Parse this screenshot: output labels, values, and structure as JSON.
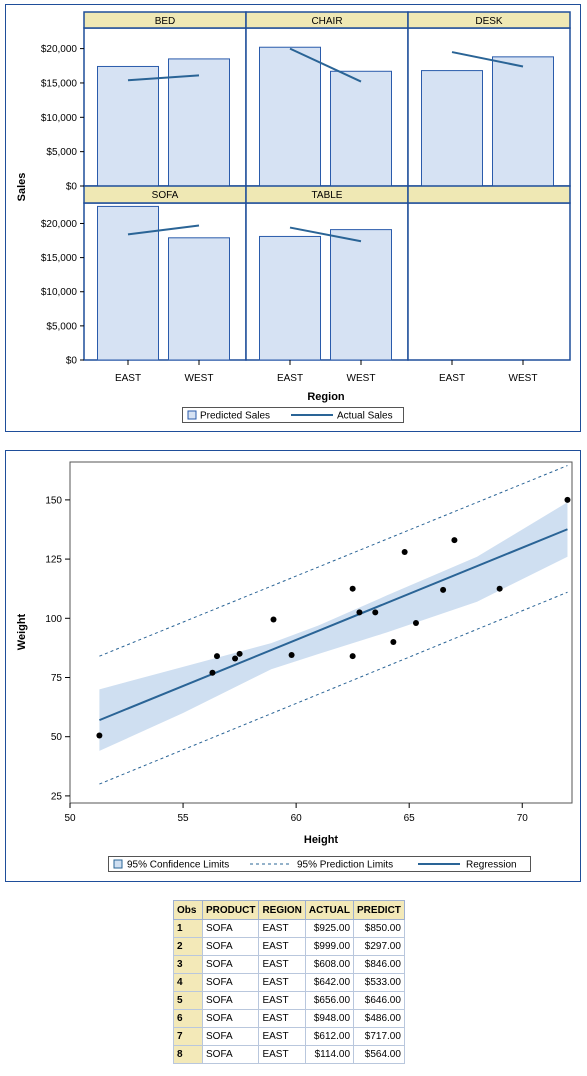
{
  "colors": {
    "bar_fill": "#d6e2f3",
    "bar_stroke": "#2a5bab",
    "line": "#2a6496",
    "header_fill": "#efe8b4",
    "frame": "#1f4e9a",
    "band": "#cfdff1",
    "point": "#000000"
  },
  "chart_data": [
    {
      "type": "bar",
      "panels": [
        {
          "label": "BED",
          "predicted": {
            "EAST": 17400,
            "WEST": 18500
          },
          "actual": {
            "EAST": 15400,
            "WEST": 16100
          }
        },
        {
          "label": "CHAIR",
          "predicted": {
            "EAST": 20200,
            "WEST": 16700
          },
          "actual": {
            "EAST": 20000,
            "WEST": 15200
          }
        },
        {
          "label": "DESK",
          "predicted": {
            "EAST": 16800,
            "WEST": 18800
          },
          "actual": {
            "EAST": 19500,
            "WEST": 17400
          }
        },
        {
          "label": "SOFA",
          "predicted": {
            "EAST": 22500,
            "WEST": 17900
          },
          "actual": {
            "EAST": 18400,
            "WEST": 19700
          }
        },
        {
          "label": "TABLE",
          "predicted": {
            "EAST": 18100,
            "WEST": 19100
          },
          "actual": {
            "EAST": 19400,
            "WEST": 17400
          }
        }
      ],
      "categories": [
        "EAST",
        "WEST"
      ],
      "ylabel": "Sales",
      "xlabel": "Region",
      "ylim": [
        0,
        23000
      ],
      "yticks": [
        "$0",
        "$5,000",
        "$10,000",
        "$15,000",
        "$20,000"
      ],
      "legend": [
        "Predicted Sales",
        "Actual Sales"
      ],
      "legend_position": "bottom"
    },
    {
      "type": "scatter",
      "xlabel": "Height",
      "ylabel": "Weight",
      "xlim": [
        50,
        72.2
      ],
      "ylim": [
        22,
        166
      ],
      "xticks": [
        50,
        55,
        60,
        65,
        70
      ],
      "yticks": [
        25,
        50,
        75,
        100,
        125,
        150
      ],
      "points": [
        [
          51.3,
          50.5
        ],
        [
          56.3,
          77.0
        ],
        [
          56.5,
          84.0
        ],
        [
          57.3,
          83.0
        ],
        [
          57.5,
          85.0
        ],
        [
          59.0,
          99.5
        ],
        [
          59.8,
          84.5
        ],
        [
          62.5,
          112.5
        ],
        [
          62.5,
          84.0
        ],
        [
          62.8,
          102.5
        ],
        [
          63.5,
          102.5
        ],
        [
          64.3,
          90.0
        ],
        [
          64.8,
          128.0
        ],
        [
          65.3,
          98.0
        ],
        [
          66.5,
          112.0
        ],
        [
          67.0,
          133.0
        ],
        [
          69.0,
          112.5
        ],
        [
          72.0,
          150.0
        ]
      ],
      "regression": [
        [
          51.3,
          57.0
        ],
        [
          72.0,
          137.6
        ]
      ],
      "confidence_upper": [
        [
          51.3,
          70.0
        ],
        [
          55,
          79.5
        ],
        [
          58.9,
          89.5
        ],
        [
          61.0,
          97.0
        ],
        [
          64,
          109.6
        ],
        [
          68,
          126.0
        ],
        [
          72.0,
          149.0
        ]
      ],
      "confidence_lower": [
        [
          51.3,
          44.0
        ],
        [
          55,
          60.0
        ],
        [
          58.9,
          78.5
        ],
        [
          61.0,
          85.0
        ],
        [
          64,
          94.0
        ],
        [
          68,
          107.0
        ],
        [
          72.0,
          126.0
        ]
      ],
      "prediction_upper": [
        [
          51.3,
          84.0
        ],
        [
          72.0,
          164.5
        ]
      ],
      "prediction_lower": [
        [
          51.3,
          30.0
        ],
        [
          72.0,
          111.0
        ]
      ],
      "legend": [
        "95% Confidence Limits",
        "95% Prediction Limits",
        "Regression"
      ],
      "legend_position": "bottom"
    },
    {
      "type": "table",
      "columns": [
        "Obs",
        "PRODUCT",
        "REGION",
        "ACTUAL",
        "PREDICT"
      ],
      "rows": [
        [
          "1",
          "SOFA",
          "EAST",
          "$925.00",
          "$850.00"
        ],
        [
          "2",
          "SOFA",
          "EAST",
          "$999.00",
          "$297.00"
        ],
        [
          "3",
          "SOFA",
          "EAST",
          "$608.00",
          "$846.00"
        ],
        [
          "4",
          "SOFA",
          "EAST",
          "$642.00",
          "$533.00"
        ],
        [
          "5",
          "SOFA",
          "EAST",
          "$656.00",
          "$646.00"
        ],
        [
          "6",
          "SOFA",
          "EAST",
          "$948.00",
          "$486.00"
        ],
        [
          "7",
          "SOFA",
          "EAST",
          "$612.00",
          "$717.00"
        ],
        [
          "8",
          "SOFA",
          "EAST",
          "$114.00",
          "$564.00"
        ]
      ]
    }
  ]
}
